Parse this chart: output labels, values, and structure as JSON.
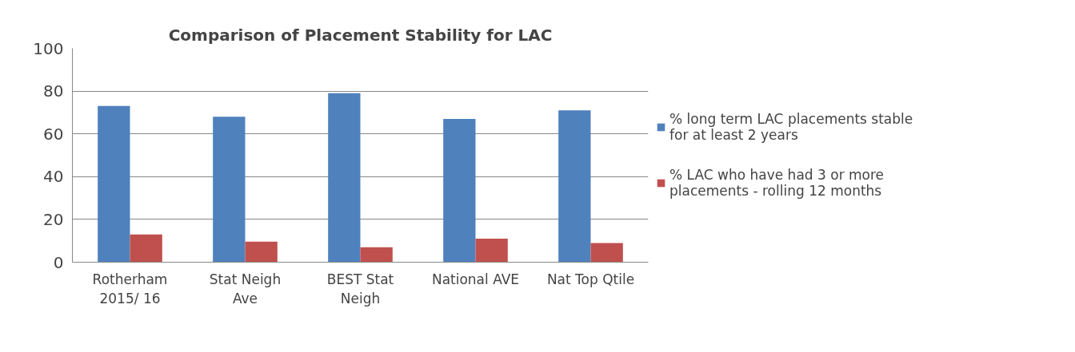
{
  "chart_data": {
    "type": "bar",
    "title": "Comparison of Placement Stability for LAC",
    "categories": [
      "Rotherham\n2015/ 16",
      "Stat Neigh\nAve",
      "BEST Stat\nNeigh",
      "National AVE",
      "Nat Top Qtile"
    ],
    "series": [
      {
        "name": "% long term LAC placements stable for at least 2 years",
        "color": "#4f81bd",
        "values": [
          73,
          68,
          79,
          67,
          71
        ]
      },
      {
        "name": "% LAC who have had 3 or more placements - rolling 12 months",
        "color": "#c0504d",
        "values": [
          13,
          9.6,
          7,
          11,
          9
        ]
      }
    ],
    "ylim": [
      0,
      100
    ],
    "yticks": [
      0,
      20,
      40,
      60,
      80,
      100
    ],
    "grid": "y",
    "legend": "right"
  }
}
